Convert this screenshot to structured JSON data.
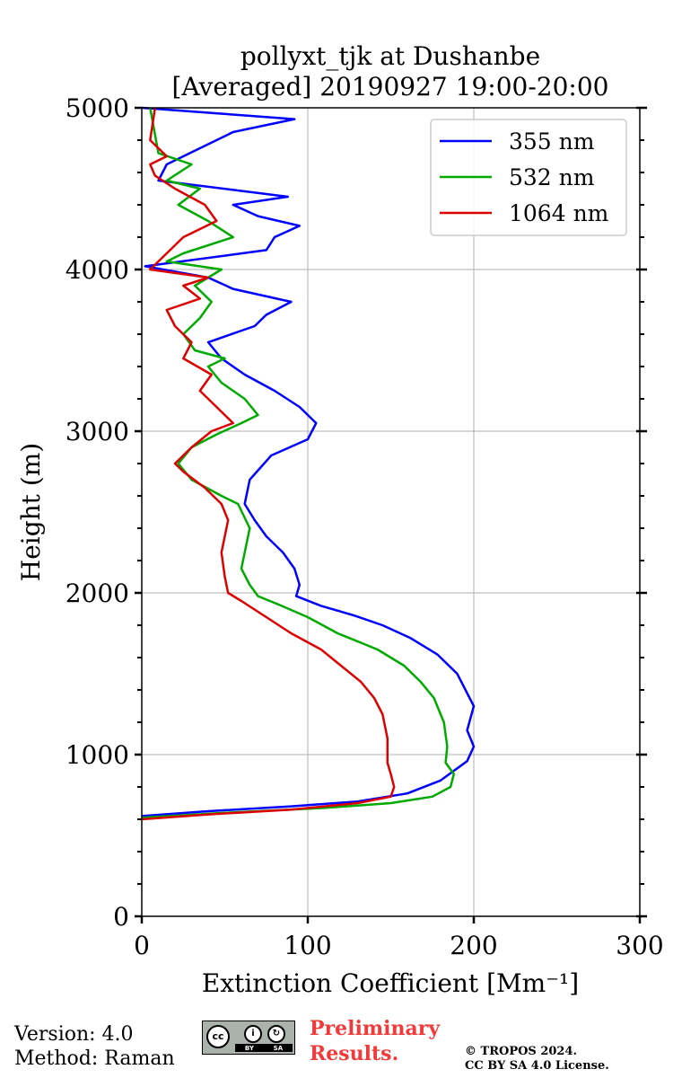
{
  "chart_data": {
    "type": "line",
    "title": "pollyxt_tjk at Dushanbe",
    "subtitle": "[Averaged] 20190927 19:00-20:00",
    "xlabel": "Extinction Coefficient [Mm⁻¹]",
    "ylabel": "Height (m)",
    "xlim": [
      0,
      300
    ],
    "ylim": [
      0,
      5000
    ],
    "xticks": [
      0,
      100,
      200,
      300
    ],
    "yticks": [
      0,
      1000,
      2000,
      3000,
      4000,
      5000
    ],
    "grid": true,
    "legend_position": "top-right",
    "series": [
      {
        "name": "355 nm",
        "color": "#0000ff",
        "x": [
          0,
          40,
          90,
          130,
          160,
          180,
          196,
          200,
          196,
          200,
          190,
          178,
          162,
          145,
          128,
          108,
          93,
          95,
          92,
          85,
          75,
          68,
          62,
          65,
          78,
          100,
          105,
          95,
          80,
          62,
          48,
          40,
          68,
          75,
          90,
          55,
          40,
          2,
          75,
          80,
          95,
          70,
          55,
          88,
          10,
          15,
          35,
          55,
          92,
          0
        ],
        "y": [
          620,
          650,
          680,
          710,
          760,
          840,
          960,
          1050,
          1150,
          1300,
          1500,
          1620,
          1720,
          1800,
          1860,
          1920,
          1980,
          2050,
          2150,
          2250,
          2350,
          2450,
          2550,
          2700,
          2850,
          2950,
          3050,
          3150,
          3250,
          3350,
          3450,
          3550,
          3650,
          3720,
          3800,
          3880,
          3950,
          4020,
          4120,
          4200,
          4270,
          4330,
          4400,
          4450,
          4550,
          4650,
          4750,
          4850,
          4930,
          5000
        ]
      },
      {
        "name": "532 nm",
        "color": "#00aa00",
        "x": [
          0,
          50,
          110,
          150,
          175,
          186,
          188,
          183,
          184,
          182,
          176,
          168,
          158,
          142,
          118,
          100,
          82,
          70,
          65,
          60,
          62,
          65,
          58,
          48,
          30,
          22,
          30,
          45,
          60,
          70,
          62,
          48,
          40,
          50,
          32,
          25,
          35,
          42,
          32,
          48,
          15,
          25,
          55,
          40,
          22,
          35,
          15,
          30,
          10,
          5
        ],
        "y": [
          610,
          640,
          670,
          700,
          740,
          800,
          880,
          950,
          1050,
          1200,
          1350,
          1450,
          1550,
          1650,
          1750,
          1850,
          1930,
          1980,
          2050,
          2150,
          2250,
          2400,
          2550,
          2600,
          2700,
          2800,
          2900,
          2980,
          3050,
          3100,
          3200,
          3300,
          3400,
          3450,
          3500,
          3600,
          3700,
          3800,
          3900,
          4000,
          4050,
          4100,
          4200,
          4300,
          4400,
          4500,
          4550,
          4650,
          4720,
          5000
        ]
      },
      {
        "name": "1064 nm",
        "color": "#dd0000",
        "x": [
          0,
          40,
          90,
          130,
          150,
          152,
          150,
          148,
          148,
          145,
          140,
          132,
          120,
          108,
          90,
          75,
          60,
          52,
          50,
          48,
          50,
          52,
          48,
          38,
          25,
          20,
          30,
          42,
          55,
          45,
          35,
          42,
          25,
          30,
          20,
          15,
          35,
          25,
          40,
          5,
          15,
          25,
          45,
          38,
          20,
          8,
          5,
          15,
          5,
          8
        ],
        "y": [
          600,
          630,
          660,
          700,
          740,
          800,
          880,
          950,
          1100,
          1250,
          1350,
          1450,
          1550,
          1650,
          1750,
          1850,
          1950,
          2000,
          2100,
          2250,
          2350,
          2450,
          2550,
          2650,
          2750,
          2800,
          2900,
          3000,
          3050,
          3150,
          3250,
          3350,
          3450,
          3550,
          3650,
          3750,
          3820,
          3900,
          3950,
          4000,
          4100,
          4200,
          4300,
          4400,
          4500,
          4580,
          4650,
          4700,
          4800,
          5000
        ]
      }
    ]
  },
  "footer": {
    "version": "Version: 4.0",
    "method": "Method: Raman",
    "preliminary_line1": "Preliminary",
    "preliminary_line2": "Results.",
    "copyright_line1": "© TROPOS 2024.",
    "copyright_line2": "CC BY SA 4.0 License.",
    "license_badge": {
      "cc": "cc",
      "by": "BY",
      "sa": "SA"
    }
  }
}
